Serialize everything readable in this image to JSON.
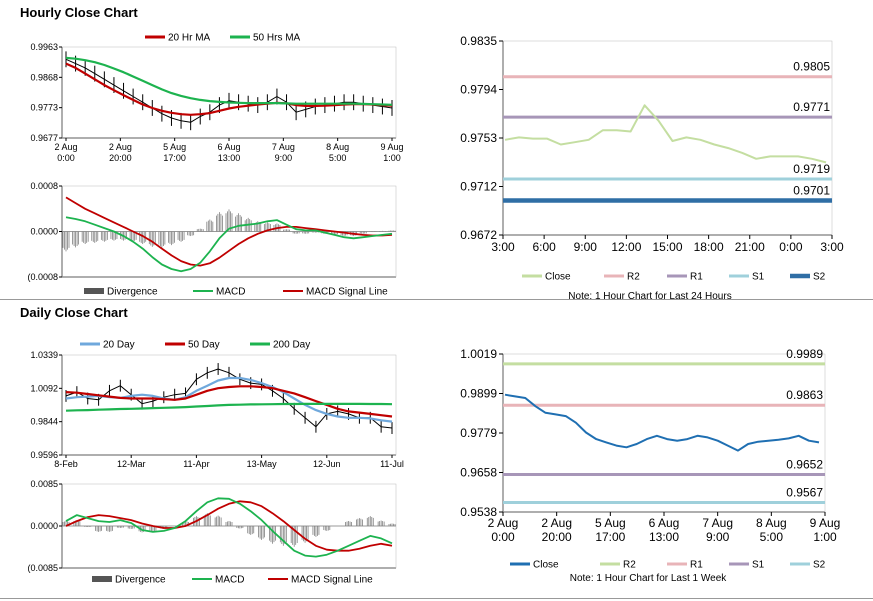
{
  "sections": {
    "hourly_title": "Hourly Close Chart",
    "daily_title": "Daily Close Chart"
  },
  "colors": {
    "red": "#c00000",
    "green": "#1db34f",
    "black": "#000000",
    "gray": "#808080",
    "blue": "#1f6fb2",
    "lightblue": "#6fa8dc",
    "close_light": "#c4dea1",
    "r2_pink": "#e8b4b8",
    "r1_purple": "#a796b8",
    "s1_cyan": "#9fd0db",
    "s2_navy": "#2f6ea5",
    "lime": "#c4dea1",
    "axis": "#000000"
  },
  "chart_data": [
    {
      "id": "hourly_price",
      "type": "line",
      "legend": [
        "20 Hr MA",
        "50 Hrs MA"
      ],
      "yticks": [
        "0.9963",
        "0.9868",
        "0.9773",
        "0.9677"
      ],
      "ylim": [
        0.9645,
        0.9963
      ],
      "xticks": [
        [
          "2 Aug",
          "0:00"
        ],
        [
          "2 Aug",
          "20:00"
        ],
        [
          "5 Aug",
          "17:00"
        ],
        [
          "6 Aug",
          "13:00"
        ],
        [
          "7 Aug",
          "9:00"
        ],
        [
          "8 Aug",
          "5:00"
        ],
        [
          "9 Aug",
          "1:00"
        ]
      ],
      "close": [
        0.992,
        0.9905,
        0.989,
        0.987,
        0.985,
        0.983,
        0.981,
        0.979,
        0.977,
        0.975,
        0.973,
        0.9715,
        0.9705,
        0.97,
        0.972,
        0.9735,
        0.976,
        0.9775,
        0.977,
        0.9765,
        0.976,
        0.977,
        0.979,
        0.977,
        0.9735,
        0.9745,
        0.9755,
        0.976,
        0.9765,
        0.977,
        0.977,
        0.9765,
        0.976,
        0.9755,
        0.975
      ],
      "ma20": [
        0.9905,
        0.989,
        0.987,
        0.985,
        0.983,
        0.9812,
        0.9795,
        0.9778,
        0.9762,
        0.975,
        0.974,
        0.9733,
        0.9728,
        0.9726,
        0.9728,
        0.9732,
        0.974,
        0.9748,
        0.9754,
        0.9758,
        0.9762,
        0.9765,
        0.9768,
        0.9766,
        0.976,
        0.9757,
        0.9757,
        0.9758,
        0.976,
        0.9762,
        0.9763,
        0.9763,
        0.9762,
        0.976,
        0.9758
      ],
      "ma50": [
        0.9925,
        0.9922,
        0.9917,
        0.991,
        0.99,
        0.9888,
        0.9875,
        0.986,
        0.9845,
        0.983,
        0.9815,
        0.9802,
        0.9792,
        0.9784,
        0.9778,
        0.9774,
        0.9771,
        0.9769,
        0.9768,
        0.9767,
        0.9767,
        0.9767,
        0.9767,
        0.9766,
        0.9765,
        0.9765,
        0.9765,
        0.9765,
        0.9765,
        0.9765,
        0.9765,
        0.9764,
        0.9763,
        0.9762,
        0.9761
      ]
    },
    {
      "id": "hourly_macd",
      "type": "line",
      "legend": [
        "Divergence",
        "MACD",
        "MACD Signal Line"
      ],
      "yticks": [
        "0.0008",
        "0.0000",
        "(0.0008"
      ],
      "ylim": [
        -0.0008,
        0.0008
      ],
      "macd": [
        0.00025,
        0.00022,
        0.00018,
        0.00012,
        6e-05,
        0.0,
        -8e-05,
        -0.00018,
        -0.0003,
        -0.00045,
        -0.00058,
        -0.00066,
        -0.0007,
        -0.00066,
        -0.00055,
        -0.00035,
        -0.00012,
        5e-05,
        0.0001,
        0.00012,
        0.00014,
        0.00018,
        0.0002,
        0.00012,
        4e-05,
        2e-05,
        2e-05,
        -2e-05,
        -6e-05,
        -0.0001,
        -0.00012,
        -0.0001,
        -8e-05,
        -6e-05,
        -4e-05
      ],
      "signal": [
        0.0006,
        0.0005,
        0.0004,
        0.00032,
        0.00024,
        0.00016,
        8e-05,
        0.0,
        -8e-05,
        -0.00018,
        -0.0003,
        -0.00042,
        -0.00052,
        -0.00058,
        -0.0006,
        -0.00056,
        -0.00046,
        -0.00034,
        -0.00022,
        -0.00012,
        -4e-05,
        2e-05,
        6e-05,
        8e-05,
        8e-05,
        6e-05,
        4e-05,
        2e-05,
        0.0,
        -2e-05,
        -4e-05,
        -6e-05,
        -7e-05,
        -7e-05,
        -6e-05
      ],
      "divergence": [
        -0.00035,
        -0.00028,
        -0.00022,
        -0.0002,
        -0.00018,
        -0.00016,
        -0.00016,
        -0.00018,
        -0.00022,
        -0.00027,
        -0.00028,
        -0.00024,
        -0.00018,
        -8e-05,
        5e-05,
        0.00021,
        0.00034,
        0.00039,
        0.00032,
        0.00024,
        0.00018,
        0.00016,
        0.00014,
        4e-05,
        -4e-05,
        -4e-05,
        -2e-05,
        -4e-05,
        -6e-05,
        -8e-05,
        -8e-05,
        -4e-05,
        -1e-05,
        1e-05,
        2e-05
      ]
    },
    {
      "id": "hourly_levels",
      "type": "line",
      "legend": [
        "Close",
        "R2",
        "R1",
        "S1",
        "S2"
      ],
      "yticks": [
        "0.9835",
        "0.9794",
        "0.9753",
        "0.9712",
        "0.9672"
      ],
      "ylim": [
        0.9672,
        0.9835
      ],
      "xticks": [
        "3:00",
        "6:00",
        "9:00",
        "12:00",
        "15:00",
        "18:00",
        "21:00",
        "0:00",
        "3:00"
      ],
      "close": [
        0.9752,
        0.9754,
        0.9753,
        0.9753,
        0.9748,
        0.975,
        0.9752,
        0.976,
        0.976,
        0.9759,
        0.9781,
        0.9768,
        0.9751,
        0.9754,
        0.9752,
        0.9748,
        0.9745,
        0.9741,
        0.9736,
        0.9738,
        0.9738,
        0.9738,
        0.9736,
        0.9733
      ],
      "levels": {
        "R2": 0.9805,
        "R1": 0.9771,
        "S1": 0.9719,
        "S2": 0.9701
      },
      "level_labels": {
        "R2": "0.9805",
        "R1": "0.9771",
        "S1": "0.9719",
        "S2": "0.9701"
      },
      "note": "Note: 1 Hour Chart for Last 24 Hours"
    },
    {
      "id": "daily_price",
      "type": "line",
      "legend": [
        "20 Day",
        "50 Day",
        "200 Day"
      ],
      "yticks": [
        "1.0339",
        "1.0092",
        "0.9844",
        "0.9596"
      ],
      "ylim": [
        0.956,
        1.0339
      ],
      "xticks": [
        "8-Feb",
        "12-Mar",
        "11-Apr",
        "13-May",
        "12-Jun",
        "11-Jul"
      ],
      "close": [
        1.002,
        1.005,
        1.0,
        0.999,
        1.006,
        1.01,
        1.003,
        0.996,
        0.998,
        1.001,
        1.003,
        1.004,
        1.015,
        1.02,
        1.023,
        1.02,
        1.015,
        1.012,
        1.011,
        1.006,
        1.0,
        0.992,
        0.985,
        0.978,
        0.988,
        0.99,
        0.988,
        0.985,
        0.985,
        0.978,
        0.977
      ],
      "d20": [
        1.0,
        1.001,
        1.0015,
        1.002,
        1.001,
        1.0005,
        1.002,
        1.003,
        1.002,
        1.0,
        0.999,
        1.001,
        1.006,
        1.01,
        1.014,
        1.016,
        1.016,
        1.0145,
        1.012,
        1.009,
        1.005,
        1.0,
        0.995,
        0.991,
        0.988,
        0.986,
        0.985,
        0.985,
        0.9845,
        0.983,
        0.982
      ],
      "d50": [
        1.005,
        1.0045,
        1.0035,
        1.0025,
        1.0015,
        1.0005,
        1.0,
        1.0,
        1.0,
        0.9995,
        0.999,
        1.0,
        1.003,
        1.006,
        1.008,
        1.009,
        1.0095,
        1.0095,
        1.009,
        1.008,
        1.006,
        1.004,
        1.001,
        0.998,
        0.995,
        0.992,
        0.99,
        0.989,
        0.988,
        0.987,
        0.986
      ],
      "d200": [
        0.9905,
        0.9908,
        0.991,
        0.9913,
        0.9915,
        0.9918,
        0.992,
        0.9922,
        0.9925,
        0.9928,
        0.993,
        0.9933,
        0.9938,
        0.9942,
        0.9946,
        0.995,
        0.9952,
        0.9954,
        0.9955,
        0.9956,
        0.9957,
        0.9957,
        0.9958,
        0.9958,
        0.9958,
        0.9958,
        0.9958,
        0.9958,
        0.9957,
        0.9957,
        0.9956
      ]
    },
    {
      "id": "daily_macd",
      "type": "line",
      "legend": [
        "Divergence",
        "MACD",
        "MACD Signal Line"
      ],
      "yticks": [
        "0.0085",
        "0.0000",
        "(0.0085"
      ],
      "ylim": [
        -0.0085,
        0.0085
      ],
      "macd": [
        0.001,
        0.0022,
        0.0016,
        0.001,
        0.0008,
        0.0012,
        0.0006,
        -0.0008,
        -0.0012,
        -0.001,
        -0.0004,
        0.001,
        0.003,
        0.0048,
        0.0056,
        0.0055,
        0.0045,
        0.003,
        0.0012,
        -0.001,
        -0.003,
        -0.005,
        -0.006,
        -0.0062,
        -0.0058,
        -0.005,
        -0.004,
        -0.003,
        -0.002,
        -0.0025,
        -0.0035
      ],
      "signal": [
        0.0,
        0.001,
        0.0018,
        0.0022,
        0.002,
        0.0016,
        0.0012,
        0.0005,
        0.0,
        -0.0004,
        -0.0004,
        0.0,
        0.001,
        0.0022,
        0.0035,
        0.0045,
        0.005,
        0.0048,
        0.004,
        0.0026,
        0.001,
        -0.0008,
        -0.0026,
        -0.004,
        -0.0048,
        -0.005,
        -0.005,
        -0.0046,
        -0.004,
        -0.0036,
        -0.004
      ],
      "divergence": [
        0.001,
        0.0012,
        -0.0002,
        -0.0012,
        -0.0012,
        -0.0004,
        -0.0006,
        -0.0013,
        -0.0012,
        -0.0006,
        0.0,
        0.001,
        0.002,
        0.0026,
        0.0021,
        0.001,
        -0.0005,
        -0.0018,
        -0.0028,
        -0.0036,
        -0.004,
        -0.0042,
        -0.0034,
        -0.0022,
        -0.001,
        0.0,
        0.001,
        0.0016,
        0.002,
        0.0011,
        0.0005
      ]
    },
    {
      "id": "daily_levels",
      "type": "line",
      "legend": [
        "Close",
        "R2",
        "R1",
        "S1",
        "S2"
      ],
      "yticks": [
        "1.0019",
        "0.9899",
        "0.9779",
        "0.9658",
        "0.9538"
      ],
      "ylim": [
        0.9538,
        1.0019
      ],
      "xticks": [
        [
          "2 Aug",
          "0:00"
        ],
        [
          "2 Aug",
          "20:00"
        ],
        [
          "5 Aug",
          "17:00"
        ],
        [
          "6 Aug",
          "13:00"
        ],
        [
          "7 Aug",
          "9:00"
        ],
        [
          "8 Aug",
          "5:00"
        ],
        [
          "9 Aug",
          "1:00"
        ]
      ],
      "close": [
        0.9895,
        0.989,
        0.9885,
        0.986,
        0.984,
        0.9835,
        0.983,
        0.981,
        0.978,
        0.976,
        0.975,
        0.974,
        0.9735,
        0.9745,
        0.976,
        0.977,
        0.976,
        0.9755,
        0.976,
        0.977,
        0.9765,
        0.9755,
        0.974,
        0.9725,
        0.9745,
        0.9752,
        0.9755,
        0.9758,
        0.9762,
        0.977,
        0.9755,
        0.975
      ],
      "levels": {
        "R2": 0.9989,
        "R1": 0.9863,
        "S1": 0.9652,
        "S2": 0.9567
      },
      "level_labels": {
        "R2": "0.9989",
        "R1": "0.9863",
        "S1": "0.9652",
        "S2": "0.9567"
      },
      "note": "Note: 1 Hour Chart for Last 1 Week"
    }
  ]
}
